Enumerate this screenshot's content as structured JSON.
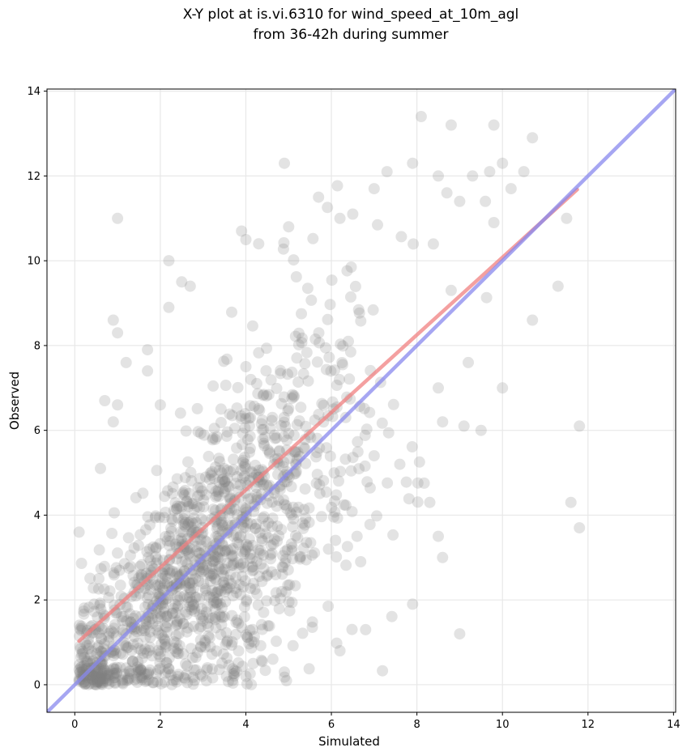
{
  "chart_data": {
    "type": "scatter",
    "title_lines": [
      "X-Y plot at is.vi.6310 for wind_speed_at_10m_agl",
      "from 36-42h during summer"
    ],
    "xlabel": "Simulated",
    "ylabel": "Observed",
    "xlim": [
      -0.65,
      14.05
    ],
    "ylim": [
      -0.65,
      14.05
    ],
    "xticks": [
      0,
      2,
      4,
      6,
      8,
      10,
      12,
      14
    ],
    "yticks": [
      0,
      2,
      4,
      6,
      8,
      10,
      12,
      14
    ],
    "grid": true,
    "point_color": "#808080",
    "point_alpha": 0.22,
    "point_count": 1500,
    "sample_points": [
      [
        0.1,
        3.6
      ],
      [
        0.2,
        0.3
      ],
      [
        0.5,
        0.0
      ],
      [
        0.6,
        5.1
      ],
      [
        0.7,
        6.7
      ],
      [
        0.9,
        6.2
      ],
      [
        0.9,
        8.6
      ],
      [
        1.0,
        8.3
      ],
      [
        1.0,
        11.0
      ],
      [
        1.0,
        6.6
      ],
      [
        1.2,
        7.6
      ],
      [
        1.7,
        7.4
      ],
      [
        1.7,
        7.9
      ],
      [
        2.0,
        6.6
      ],
      [
        2.2,
        8.9
      ],
      [
        2.2,
        10.0
      ],
      [
        2.5,
        9.5
      ],
      [
        2.7,
        9.4
      ],
      [
        2.3,
        0.1
      ],
      [
        2.8,
        0.1
      ],
      [
        3.9,
        10.7
      ],
      [
        4.0,
        10.5
      ],
      [
        4.3,
        10.4
      ],
      [
        4.9,
        12.3
      ],
      [
        5.0,
        10.8
      ],
      [
        5.7,
        11.5
      ],
      [
        6.2,
        11.0
      ],
      [
        6.5,
        11.1
      ],
      [
        7.0,
        11.7
      ],
      [
        7.3,
        12.1
      ],
      [
        7.9,
        12.3
      ],
      [
        8.1,
        13.4
      ],
      [
        8.8,
        13.2
      ],
      [
        9.8,
        13.2
      ],
      [
        10.7,
        12.9
      ],
      [
        10.5,
        12.1
      ],
      [
        10.0,
        12.3
      ],
      [
        10.2,
        11.7
      ],
      [
        9.7,
        12.1
      ],
      [
        9.3,
        12.0
      ],
      [
        8.5,
        12.0
      ],
      [
        8.7,
        11.6
      ],
      [
        9.0,
        11.4
      ],
      [
        9.6,
        11.4
      ],
      [
        9.8,
        10.9
      ],
      [
        10.7,
        8.6
      ],
      [
        11.3,
        9.4
      ],
      [
        11.5,
        11.0
      ],
      [
        11.6,
        4.3
      ],
      [
        11.8,
        3.7
      ],
      [
        11.8,
        6.1
      ],
      [
        10.0,
        7.0
      ],
      [
        9.2,
        7.6
      ],
      [
        9.1,
        6.1
      ],
      [
        9.0,
        1.2
      ],
      [
        8.6,
        3.0
      ],
      [
        8.5,
        3.5
      ],
      [
        7.9,
        1.9
      ],
      [
        6.8,
        1.3
      ],
      [
        6.2,
        0.8
      ],
      [
        4.9,
        0.3
      ],
      [
        4.0,
        0.2
      ],
      [
        3.1,
        0.4
      ],
      [
        6.6,
        3.5
      ],
      [
        7.0,
        5.4
      ],
      [
        7.6,
        5.2
      ],
      [
        8.3,
        4.3
      ],
      [
        8.6,
        6.2
      ],
      [
        9.5,
        6.0
      ],
      [
        8.8,
        9.3
      ],
      [
        8.5,
        7.0
      ]
    ],
    "series": [
      {
        "type": "fit-line",
        "color": "#f08080",
        "x": [
          0.1,
          11.75
        ],
        "y": [
          1.03,
          11.68
        ]
      },
      {
        "type": "identity-line",
        "color": "#8888ee",
        "x": [
          -0.65,
          14.05
        ],
        "y": [
          -0.65,
          14.05
        ]
      }
    ]
  }
}
